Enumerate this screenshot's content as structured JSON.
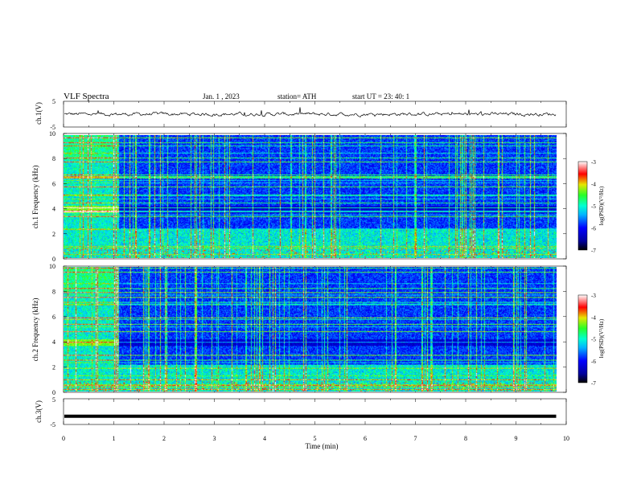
{
  "header": {
    "title": "VLF  Spectra",
    "date": "Jan.  1  , 2023",
    "station": "station= ATH",
    "start": "start  UT  =    23: 40: 1"
  },
  "chart_data": [
    {
      "type": "line",
      "panel": "ch1-waveform",
      "ylabel": "ch.1(V)",
      "ylim": [
        -5,
        5
      ],
      "yticks": [
        "5",
        "-5"
      ],
      "xlim": [
        0,
        10
      ],
      "description_of_trace": "noisy signal centered near 0 V with amplitude about ±0.7 V, occasional spikes",
      "trace_end_min": 9.8
    },
    {
      "type": "heatmap",
      "panel": "ch1-spectrogram",
      "ylabel": "ch.1\nFrequency  (kHz)",
      "ylim": [
        0,
        10
      ],
      "yticks": [
        "0",
        "2",
        "4",
        "6",
        "8",
        "10"
      ],
      "xlim": [
        0,
        10
      ],
      "data_end_min": 9.8,
      "colorbar": {
        "label": "log(PSD)(V²/Hz)",
        "range": [
          -7,
          -3
        ],
        "ticks": [
          "-3",
          "-4",
          "-5",
          "-6",
          "-7"
        ]
      },
      "features": {
        "broadband_interval_min": [
          0,
          1.1
        ],
        "strong_band_khz": [
          3.7,
          4.3
        ],
        "low_band_khz": [
          0,
          2.3
        ]
      }
    },
    {
      "type": "heatmap",
      "panel": "ch2-spectrogram",
      "ylabel": "ch.2\nFrequency  (kHz)",
      "ylim": [
        0,
        10
      ],
      "yticks": [
        "0",
        "2",
        "4",
        "6",
        "8",
        "10"
      ],
      "xlim": [
        0,
        10
      ],
      "data_end_min": 9.8,
      "colorbar": {
        "label": "log(PSD)(V²/Hz)",
        "range": [
          -7,
          -3
        ],
        "ticks": [
          "-3",
          "-4",
          "-5",
          "-6",
          "-7"
        ]
      },
      "features": {
        "broadband_interval_min": [
          0,
          1.1
        ],
        "strong_band_khz": [
          3.7,
          4.2
        ],
        "low_band_khz": [
          0,
          2.2
        ]
      }
    },
    {
      "type": "line",
      "panel": "ch3-waveform",
      "ylabel": "ch.3(V)",
      "ylim": [
        -5,
        5
      ],
      "yticks": [
        "5",
        "-5"
      ],
      "xlim": [
        0,
        10
      ],
      "constant_value": -1.8,
      "trace_end_min": 9.8
    }
  ],
  "xaxis": {
    "label": "Time  (min)",
    "ticks": [
      "0",
      "1",
      "2",
      "3",
      "4",
      "5",
      "6",
      "7",
      "8",
      "9",
      "10"
    ]
  }
}
